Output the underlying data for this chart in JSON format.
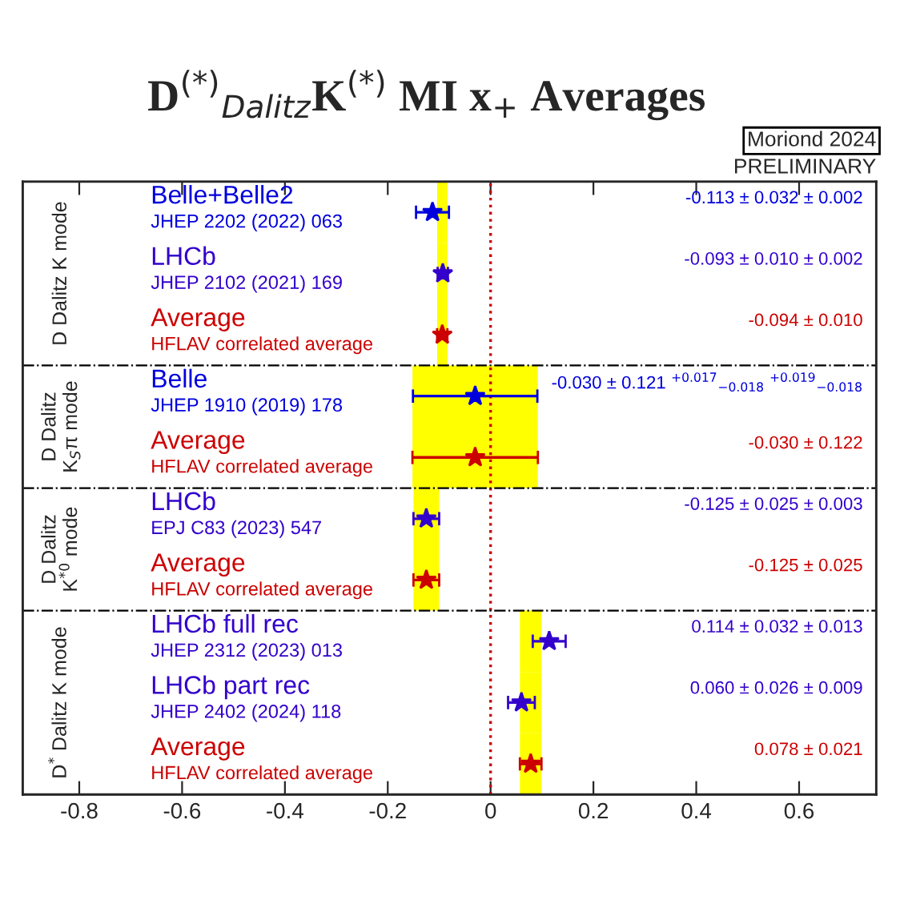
{
  "chart_data": {
    "type": "scatter",
    "title": "D$^{(*)}$$_{Dalitz}$K$^{(*)}$ MI x$_{+}$ Averages",
    "orientation": "horizontal",
    "marker": "star",
    "grid": false,
    "tick_labels": "x",
    "categories": [
      "Belle+Belle2\nJHEP 2202 (2022) 063",
      "LHCb\nJHEP 2102 (2021) 169",
      "Average\nHFLAV correlated average",
      "Belle\nJHEP 1910 (2019) 178",
      "Average\nHFLAV correlated average",
      "LHCb\nEPJ C83 (2023) 547",
      "Average\nHFLAV correlated average",
      "LHCb full rec\nJHEP 2312 (2023) 013",
      "LHCb part rec\nJHEP 2402 (2024) 118",
      "Average\nHFLAV correlated average"
    ],
    "y2_categories": [
      "-0.113 ± 0.032 ± 0.002",
      "-0.093 ± 0.010 ± 0.002",
      "-0.094 ± 0.010",
      "-0.030 ± 0.121 $^{+0.017}$$_{−0.018}$ $^{+0.019}$$_{−0.018}$",
      "-0.030 ± 0.122",
      "-0.125 ± 0.025 ± 0.003",
      "-0.125 ± 0.025",
      "0.114 ± 0.032 ± 0.013",
      "0.060 ± 0.026 ± 0.009",
      "0.078 ± 0.021"
    ],
    "series": [
      {
        "type": "bar",
        "color": "#ffff00",
        "base": [
          -0.104,
          -0.104,
          -0.104,
          -0.152,
          -0.152,
          -0.15,
          -0.15,
          0.057,
          0.057,
          0.057
        ],
        "values": [
          0.02,
          0.02,
          0.02,
          0.244,
          0.244,
          0.05,
          0.05,
          0.042,
          0.042,
          0.042
        ]
      },
      {
        "colors": [
          "#0000dd",
          "#3300cc",
          null,
          "#0000dd",
          null,
          "#3300cc",
          null,
          "#3300cc",
          "#3300cc",
          null
        ],
        "values": [
          -0.113,
          -0.093,
          null,
          -0.03,
          null,
          -0.125,
          null,
          0.114,
          0.06,
          null
        ],
        "errors": [
          0.032,
          0.01,
          null,
          0.121,
          null,
          0.025,
          null,
          0.032,
          0.026,
          null
        ]
      },
      {
        "color": "#cc0000",
        "values": [
          null,
          null,
          -0.094,
          null,
          -0.03,
          null,
          -0.125,
          null,
          null,
          0.078
        ],
        "errors": [
          null,
          null,
          0.01,
          null,
          0.122,
          null,
          0.025,
          null,
          null,
          0.021
        ]
      }
    ],
    "xlim": [
      -0.91,
      0.75
    ],
    "xticks": [
      -0.8,
      -0.6,
      -0.4,
      -0.2,
      0,
      0.2,
      0.4,
      0.6
    ],
    "ref_lines": [
      {
        "axis": "x",
        "value": 0,
        "color": "#cc0000",
        "line_style": "dotted"
      }
    ],
    "annotations": [
      "D Dalitz K mode",
      "D Dalitz K$_{S}$π mode",
      "D Dalitz K$^{*0}$ mode",
      "D$^{*}$ Dalitz K mode",
      "Moriond 2024",
      "PRELIMINARY"
    ]
  }
}
